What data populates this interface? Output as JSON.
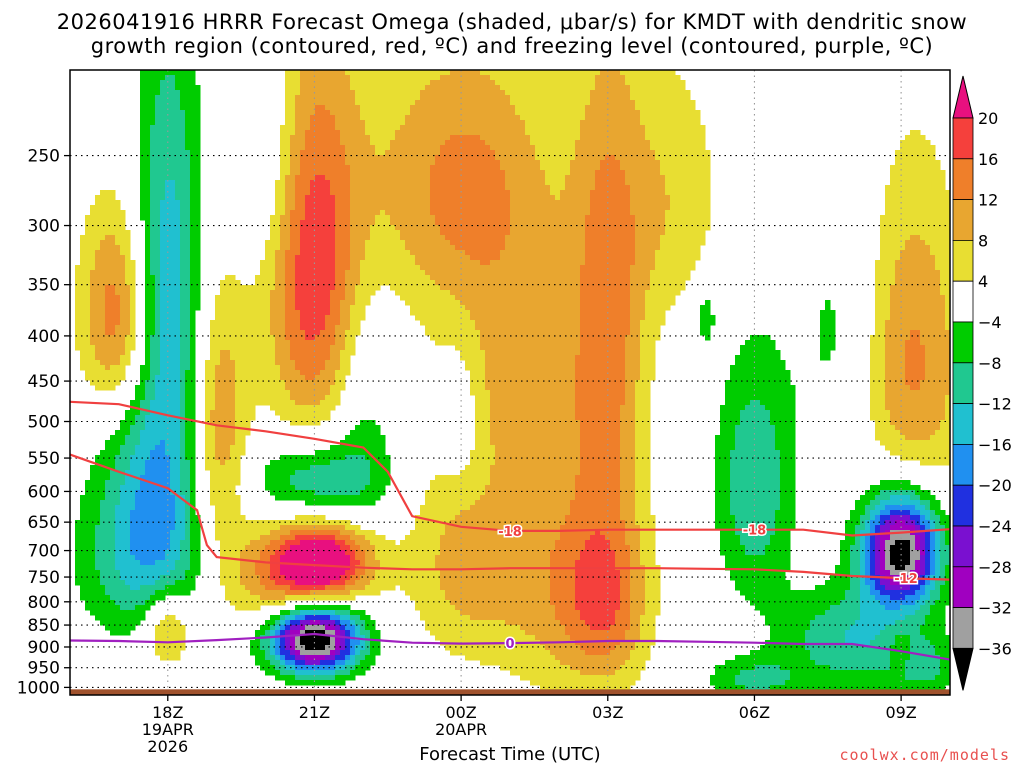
{
  "header": {
    "title_line1": "2026041916 HRRR Forecast Omega (shaded, μbar/s) for KMDT with dendritic snow",
    "title_line2": "growth region (contoured, red, ºC) and freezing level (contoured, purple, ºC)"
  },
  "credit": "coolwx.com/models",
  "chart_data": {
    "type": "heatmap",
    "title": "2026041916 HRRR Forecast Omega (shaded, μbar/s) for KMDT with dendritic snow growth region (contoured, red, ºC) and freezing level (contoured, purple, ºC)",
    "xlabel": "Forecast Time (UTC)",
    "ylabel": "",
    "x_ticks": [
      {
        "hour": 18,
        "label": "18Z",
        "sub1": "19APR",
        "sub2": "2026"
      },
      {
        "hour": 21,
        "label": "21Z",
        "sub1": "",
        "sub2": ""
      },
      {
        "hour": 24,
        "label": "00Z",
        "sub1": "20APR",
        "sub2": ""
      },
      {
        "hour": 27,
        "label": "03Z",
        "sub1": "",
        "sub2": ""
      },
      {
        "hour": 30,
        "label": "06Z",
        "sub1": "",
        "sub2": ""
      },
      {
        "hour": 33,
        "label": "09Z",
        "sub1": "",
        "sub2": ""
      }
    ],
    "xlim_hours": [
      16,
      34
    ],
    "ylim_hPa": [
      1020,
      200
    ],
    "y_scale": "log",
    "y_ticks": [
      250,
      300,
      350,
      400,
      450,
      500,
      550,
      600,
      650,
      700,
      750,
      800,
      850,
      900,
      950,
      1000
    ],
    "grid": true,
    "surface_color": "#a0522d",
    "colorbar": {
      "ticks": [
        20,
        16,
        12,
        8,
        4,
        -4,
        -8,
        -12,
        -16,
        -20,
        -24,
        -28,
        -32,
        -36
      ],
      "bins": [
        {
          "lo": 20,
          "hi": 99,
          "color": "#e8107f"
        },
        {
          "lo": 16,
          "hi": 20,
          "color": "#f5403c"
        },
        {
          "lo": 12,
          "hi": 16,
          "color": "#ef7f2a"
        },
        {
          "lo": 8,
          "hi": 12,
          "color": "#e8a630"
        },
        {
          "lo": 4,
          "hi": 8,
          "color": "#e8de32"
        },
        {
          "lo": -4,
          "hi": 4,
          "color": "#ffffff"
        },
        {
          "lo": -8,
          "hi": -4,
          "color": "#00cc00"
        },
        {
          "lo": -12,
          "hi": -8,
          "color": "#20c890"
        },
        {
          "lo": -16,
          "hi": -12,
          "color": "#20c0d0"
        },
        {
          "lo": -20,
          "hi": -16,
          "color": "#2090f0"
        },
        {
          "lo": -24,
          "hi": -20,
          "color": "#2030e0"
        },
        {
          "lo": -28,
          "hi": -24,
          "color": "#7a10d0"
        },
        {
          "lo": -32,
          "hi": -28,
          "color": "#a000c0"
        },
        {
          "lo": -36,
          "hi": -32,
          "color": "#a0a0a0"
        },
        {
          "lo": -99,
          "hi": -36,
          "color": "#000000"
        }
      ]
    },
    "omega_features": [
      {
        "hour": 17.0,
        "p": 380,
        "peak": 17,
        "sx": 0.55,
        "sp": 75
      },
      {
        "hour": 18.0,
        "p": 330,
        "peak": -14,
        "sx": 0.55,
        "sp": 120
      },
      {
        "hour": 17.9,
        "p": 600,
        "peak": -14,
        "sx": 0.8,
        "sp": 150
      },
      {
        "hour": 17.3,
        "p": 720,
        "peak": -8,
        "sx": 0.9,
        "sp": 110
      },
      {
        "hour": 20.0,
        "p": 250,
        "peak": -6,
        "sx": 0.5,
        "sp": 60
      },
      {
        "hour": 19.0,
        "p": 520,
        "peak": 15,
        "sx": 0.45,
        "sp": 140
      },
      {
        "hour": 18.0,
        "p": 860,
        "peak": 13,
        "sx": 0.35,
        "sp": 60
      },
      {
        "hour": 21.0,
        "p": 340,
        "peak": 19,
        "sx": 0.7,
        "sp": 120
      },
      {
        "hour": 21.2,
        "p": 720,
        "peak": 21,
        "sx": 0.7,
        "sp": 50
      },
      {
        "hour": 20.5,
        "p": 760,
        "peak": 13,
        "sx": 0.9,
        "sp": 80
      },
      {
        "hour": 21.0,
        "p": 585,
        "peak": -13,
        "sx": 0.9,
        "sp": 45
      },
      {
        "hour": 21.0,
        "p": 880,
        "peak": -44,
        "sx": 0.65,
        "sp": 55
      },
      {
        "hour": 22.0,
        "p": 480,
        "peak": -6,
        "sx": 0.5,
        "sp": 110
      },
      {
        "hour": 24.0,
        "p": 270,
        "peak": 13,
        "sx": 1.4,
        "sp": 70
      },
      {
        "hour": 25.0,
        "p": 440,
        "peak": 8,
        "sx": 1.0,
        "sp": 90
      },
      {
        "hour": 24.0,
        "p": 720,
        "peak": 9,
        "sx": 0.8,
        "sp": 140
      },
      {
        "hour": 26.0,
        "p": 750,
        "peak": 10,
        "sx": 1.0,
        "sp": 180
      },
      {
        "hour": 27.0,
        "p": 390,
        "peak": 13,
        "sx": 0.55,
        "sp": 160
      },
      {
        "hour": 27.0,
        "p": 800,
        "peak": 12,
        "sx": 0.6,
        "sp": 130
      },
      {
        "hour": 24.0,
        "p": 500,
        "peak": -6,
        "sx": 0.35,
        "sp": 70
      },
      {
        "hour": 28.3,
        "p": 280,
        "peak": 7,
        "sx": 0.8,
        "sp": 70
      },
      {
        "hour": 29.0,
        "p": 380,
        "peak": -7,
        "sx": 0.15,
        "sp": 25
      },
      {
        "hour": 30.0,
        "p": 590,
        "peak": -12,
        "sx": 0.55,
        "sp": 130
      },
      {
        "hour": 30.0,
        "p": 980,
        "peak": -9,
        "sx": 0.7,
        "sp": 40
      },
      {
        "hour": 31.8,
        "p": 400,
        "peak": -6,
        "sx": 0.65,
        "sp": 110
      },
      {
        "hour": 33.2,
        "p": 430,
        "peak": 13,
        "sx": 0.8,
        "sp": 130
      },
      {
        "hour": 33.0,
        "p": 700,
        "peak": -40,
        "sx": 0.55,
        "sp": 70
      },
      {
        "hour": 32.0,
        "p": 880,
        "peak": -12,
        "sx": 1.0,
        "sp": 80
      },
      {
        "hour": 33.5,
        "p": 950,
        "peak": -8,
        "sx": 0.5,
        "sp": 50
      },
      {
        "hour": 33.0,
        "p": 910,
        "peak": 6,
        "sx": 0.15,
        "sp": 30
      }
    ],
    "series": [
      {
        "name": "-18",
        "color": "#f04040",
        "points": [
          [
            16.0,
            475
          ],
          [
            17.0,
            478
          ],
          [
            18.0,
            492
          ],
          [
            19.0,
            505
          ],
          [
            20.0,
            513
          ],
          [
            21.0,
            523
          ],
          [
            22.0,
            535
          ],
          [
            22.5,
            570
          ],
          [
            23.0,
            640
          ],
          [
            24.0,
            658
          ],
          [
            25.0,
            665
          ],
          [
            26.0,
            665
          ],
          [
            27.0,
            663
          ],
          [
            28.0,
            663
          ],
          [
            29.0,
            663
          ],
          [
            30.0,
            663
          ],
          [
            31.0,
            663
          ],
          [
            32.0,
            673
          ],
          [
            33.0,
            668
          ],
          [
            34.0,
            662
          ]
        ],
        "labels": [
          {
            "hour": 25.0,
            "text": "-18"
          },
          {
            "hour": 30.0,
            "text": "-18"
          }
        ]
      },
      {
        "name": "-12",
        "color": "#f04040",
        "points": [
          [
            16.0,
            545
          ],
          [
            17.0,
            570
          ],
          [
            18.0,
            595
          ],
          [
            18.6,
            630
          ],
          [
            18.7,
            660
          ],
          [
            18.8,
            690
          ],
          [
            19.0,
            712
          ],
          [
            20.0,
            722
          ],
          [
            21.0,
            727
          ],
          [
            22.0,
            732
          ],
          [
            23.0,
            735
          ],
          [
            24.0,
            735
          ],
          [
            25.0,
            733
          ],
          [
            26.0,
            733
          ],
          [
            27.0,
            733
          ],
          [
            28.0,
            733
          ],
          [
            29.0,
            734
          ],
          [
            30.0,
            735
          ],
          [
            31.0,
            740
          ],
          [
            32.0,
            748
          ],
          [
            33.0,
            752
          ],
          [
            34.0,
            755
          ]
        ],
        "labels": [
          {
            "hour": 33.1,
            "text": "-12"
          }
        ]
      },
      {
        "name": "0",
        "color": "#a020c0",
        "points": [
          [
            16.0,
            885
          ],
          [
            17.0,
            886
          ],
          [
            18.0,
            889
          ],
          [
            19.0,
            884
          ],
          [
            20.0,
            878
          ],
          [
            21.0,
            870
          ],
          [
            22.0,
            882
          ],
          [
            23.0,
            890
          ],
          [
            24.0,
            892
          ],
          [
            25.0,
            891
          ],
          [
            26.0,
            889
          ],
          [
            27.0,
            886
          ],
          [
            28.0,
            886
          ],
          [
            29.0,
            888
          ],
          [
            30.0,
            890
          ],
          [
            31.0,
            893
          ],
          [
            32.0,
            893
          ],
          [
            33.0,
            910
          ],
          [
            34.0,
            930
          ]
        ],
        "labels": [
          {
            "hour": 25.0,
            "text": "0"
          }
        ]
      }
    ]
  }
}
